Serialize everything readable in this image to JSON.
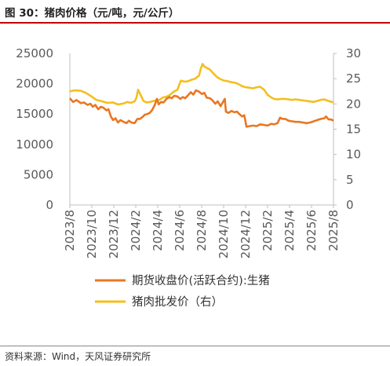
{
  "header": {
    "title": "图 30：猪肉价格（元/吨，元/公斤）"
  },
  "footer": {
    "source": "资料来源：Wind，天风证券研究所"
  },
  "chart_data": {
    "type": "line",
    "x_ticks": [
      "2023/8",
      "2023/10",
      "2023/12",
      "2024/2",
      "2024/4",
      "2024/6",
      "2024/8",
      "2024/10",
      "2024/12",
      "2025/2",
      "2025/4",
      "2025/6",
      "2025/8"
    ],
    "y_left": {
      "ylim": [
        0,
        25000
      ],
      "ticks": [
        "0",
        "5000",
        "10000",
        "15000",
        "20000",
        "25000"
      ]
    },
    "y_right": {
      "ylim": [
        0,
        30
      ],
      "ticks": [
        "0",
        "5",
        "10",
        "15",
        "20",
        "25",
        "30"
      ]
    },
    "grid": false,
    "legend_position": "bottom",
    "series": [
      {
        "name": "期货收盘价(活跃合约):生猪",
        "axis": "left",
        "color": "#E87722",
        "points": [
          [
            "2023-08-01",
            17600
          ],
          [
            "2023-08-10",
            17000
          ],
          [
            "2023-08-20",
            17300
          ],
          [
            "2023-09-01",
            16800
          ],
          [
            "2023-09-10",
            16900
          ],
          [
            "2023-09-20",
            16500
          ],
          [
            "2023-09-28",
            16700
          ],
          [
            "2023-10-05",
            16200
          ],
          [
            "2023-10-12",
            16500
          ],
          [
            "2023-10-20",
            15800
          ],
          [
            "2023-10-28",
            16200
          ],
          [
            "2023-11-05",
            16000
          ],
          [
            "2023-11-12",
            15600
          ],
          [
            "2023-11-18",
            15800
          ],
          [
            "2023-11-25",
            14600
          ],
          [
            "2023-12-01",
            14000
          ],
          [
            "2023-12-08",
            14300
          ],
          [
            "2023-12-15",
            13600
          ],
          [
            "2023-12-22",
            14000
          ],
          [
            "2023-12-31",
            13700
          ],
          [
            "2024-01-08",
            13500
          ],
          [
            "2024-01-15",
            13900
          ],
          [
            "2024-01-22",
            13600
          ],
          [
            "2024-01-31",
            13500
          ],
          [
            "2024-02-08",
            14200
          ],
          [
            "2024-02-15",
            14200
          ],
          [
            "2024-02-22",
            14500
          ],
          [
            "2024-02-29",
            14900
          ],
          [
            "2024-03-07",
            15000
          ],
          [
            "2024-03-14",
            15200
          ],
          [
            "2024-03-21",
            15700
          ],
          [
            "2024-03-28",
            16500
          ],
          [
            "2024-04-03",
            17500
          ],
          [
            "2024-04-08",
            16600
          ],
          [
            "2024-04-15",
            17000
          ],
          [
            "2024-04-22",
            16900
          ],
          [
            "2024-04-30",
            17500
          ],
          [
            "2024-05-08",
            17800
          ],
          [
            "2024-05-15",
            17600
          ],
          [
            "2024-05-22",
            18000
          ],
          [
            "2024-05-31",
            17900
          ],
          [
            "2024-06-08",
            17500
          ],
          [
            "2024-06-15",
            17800
          ],
          [
            "2024-06-22",
            17600
          ],
          [
            "2024-06-30",
            18100
          ],
          [
            "2024-07-08",
            18600
          ],
          [
            "2024-07-15",
            18200
          ],
          [
            "2024-07-22",
            18900
          ],
          [
            "2024-07-31",
            18700
          ],
          [
            "2024-08-08",
            18300
          ],
          [
            "2024-08-15",
            18500
          ],
          [
            "2024-08-22",
            17700
          ],
          [
            "2024-08-31",
            17600
          ],
          [
            "2024-09-08",
            17200
          ],
          [
            "2024-09-15",
            16700
          ],
          [
            "2024-09-22",
            17100
          ],
          [
            "2024-09-30",
            16300
          ],
          [
            "2024-10-06",
            16900
          ],
          [
            "2024-10-12",
            17500
          ],
          [
            "2024-10-15",
            15400
          ],
          [
            "2024-10-22",
            15200
          ],
          [
            "2024-10-31",
            15500
          ],
          [
            "2024-11-08",
            15300
          ],
          [
            "2024-11-15",
            15400
          ],
          [
            "2024-11-22",
            15000
          ],
          [
            "2024-11-30",
            14600
          ],
          [
            "2024-12-06",
            14800
          ],
          [
            "2024-12-12",
            12900
          ],
          [
            "2024-12-20",
            13000
          ],
          [
            "2024-12-31",
            13100
          ],
          [
            "2025-01-10",
            13000
          ],
          [
            "2025-01-20",
            13300
          ],
          [
            "2025-01-31",
            13200
          ],
          [
            "2025-02-10",
            13100
          ],
          [
            "2025-02-20",
            13400
          ],
          [
            "2025-02-28",
            13300
          ],
          [
            "2025-03-10",
            13500
          ],
          [
            "2025-03-17",
            14400
          ],
          [
            "2025-03-24",
            14200
          ],
          [
            "2025-04-01",
            14200
          ],
          [
            "2025-04-10",
            13900
          ],
          [
            "2025-04-20",
            13800
          ],
          [
            "2025-04-30",
            13700
          ],
          [
            "2025-05-10",
            13700
          ],
          [
            "2025-05-20",
            13600
          ],
          [
            "2025-05-31",
            13500
          ],
          [
            "2025-06-10",
            13600
          ],
          [
            "2025-06-20",
            13800
          ],
          [
            "2025-06-30",
            14000
          ],
          [
            "2025-07-10",
            14200
          ],
          [
            "2025-07-20",
            14300
          ],
          [
            "2025-07-25",
            14600
          ],
          [
            "2025-08-01",
            14100
          ],
          [
            "2025-08-08",
            14100
          ],
          [
            "2025-08-15",
            13900
          ]
        ]
      },
      {
        "name": "猪肉批发价（右）",
        "axis": "right",
        "color": "#F5BE1E",
        "points": [
          [
            "2023-08-01",
            22.5
          ],
          [
            "2023-08-15",
            22.7
          ],
          [
            "2023-09-01",
            22.6
          ],
          [
            "2023-09-15",
            22.2
          ],
          [
            "2023-10-01",
            21.5
          ],
          [
            "2023-10-15",
            20.8
          ],
          [
            "2023-11-01",
            20.5
          ],
          [
            "2023-11-15",
            20.2
          ],
          [
            "2023-12-01",
            20.3
          ],
          [
            "2023-12-15",
            19.9
          ],
          [
            "2023-12-31",
            20.1
          ],
          [
            "2024-01-10",
            20.4
          ],
          [
            "2024-01-20",
            20.2
          ],
          [
            "2024-01-31",
            20.5
          ],
          [
            "2024-02-05",
            21.2
          ],
          [
            "2024-02-10",
            22.8
          ],
          [
            "2024-02-17",
            21.8
          ],
          [
            "2024-02-25",
            20.6
          ],
          [
            "2024-03-05",
            20.3
          ],
          [
            "2024-03-15",
            20.4
          ],
          [
            "2024-03-25",
            20.6
          ],
          [
            "2024-04-01",
            20.7
          ],
          [
            "2024-04-10",
            20.8
          ],
          [
            "2024-04-20",
            21.3
          ],
          [
            "2024-04-30",
            21.4
          ],
          [
            "2024-05-10",
            21.8
          ],
          [
            "2024-05-20",
            22.4
          ],
          [
            "2024-05-31",
            22.8
          ],
          [
            "2024-06-05",
            23.8
          ],
          [
            "2024-06-10",
            24.6
          ],
          [
            "2024-06-20",
            24.4
          ],
          [
            "2024-06-30",
            24.5
          ],
          [
            "2024-07-10",
            24.8
          ],
          [
            "2024-07-20",
            25.0
          ],
          [
            "2024-07-31",
            25.6
          ],
          [
            "2024-08-05",
            27.0
          ],
          [
            "2024-08-10",
            27.9
          ],
          [
            "2024-08-15",
            27.4
          ],
          [
            "2024-08-25",
            27.0
          ],
          [
            "2024-08-31",
            26.8
          ],
          [
            "2024-09-10",
            26.0
          ],
          [
            "2024-09-20",
            25.3
          ],
          [
            "2024-09-30",
            24.9
          ],
          [
            "2024-10-10",
            24.6
          ],
          [
            "2024-10-20",
            24.5
          ],
          [
            "2024-10-31",
            24.3
          ],
          [
            "2024-11-10",
            24.2
          ],
          [
            "2024-11-20",
            23.9
          ],
          [
            "2024-11-30",
            23.5
          ],
          [
            "2024-12-10",
            23.3
          ],
          [
            "2024-12-20",
            23.2
          ],
          [
            "2024-12-31",
            23.1
          ],
          [
            "2025-01-10",
            23.3
          ],
          [
            "2025-01-20",
            23.4
          ],
          [
            "2025-01-31",
            22.8
          ],
          [
            "2025-02-10",
            21.8
          ],
          [
            "2025-02-20",
            21.3
          ],
          [
            "2025-02-28",
            21.0
          ],
          [
            "2025-03-10",
            20.9
          ],
          [
            "2025-03-20",
            21.0
          ],
          [
            "2025-03-31",
            21.0
          ],
          [
            "2025-04-10",
            20.9
          ],
          [
            "2025-04-20",
            20.8
          ],
          [
            "2025-04-30",
            20.9
          ],
          [
            "2025-05-10",
            20.8
          ],
          [
            "2025-05-20",
            20.7
          ],
          [
            "2025-05-31",
            20.6
          ],
          [
            "2025-06-10",
            20.5
          ],
          [
            "2025-06-20",
            20.4
          ],
          [
            "2025-06-30",
            20.6
          ],
          [
            "2025-07-10",
            20.8
          ],
          [
            "2025-07-20",
            20.9
          ],
          [
            "2025-07-31",
            20.6
          ],
          [
            "2025-08-10",
            20.4
          ],
          [
            "2025-08-15",
            20.3
          ]
        ]
      }
    ]
  }
}
